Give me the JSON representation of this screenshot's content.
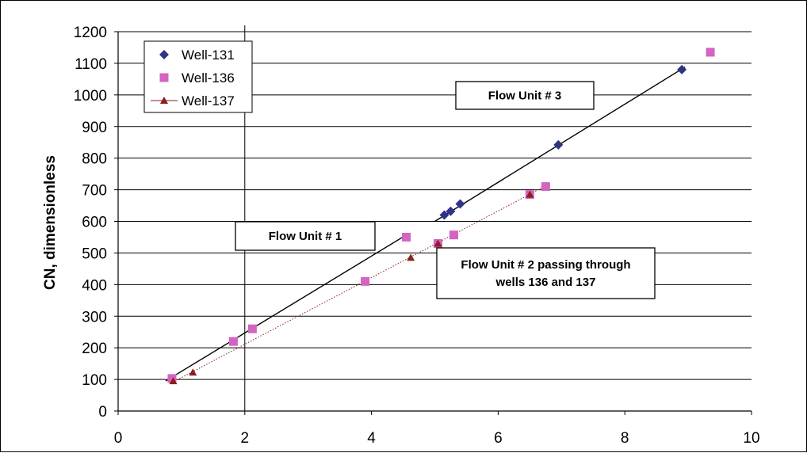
{
  "chart_data": {
    "type": "scatter",
    "title": "",
    "xlabel": "",
    "ylabel": "CN, dimensionless",
    "xlim": [
      0,
      10
    ],
    "ylim": [
      0,
      1200
    ],
    "xticks": [
      0,
      2,
      4,
      6,
      8,
      10
    ],
    "yticks": [
      0,
      100,
      200,
      300,
      400,
      500,
      600,
      700,
      800,
      900,
      1000,
      1100,
      1200
    ],
    "grid": "horizontal",
    "legend_position": "top-left",
    "series": [
      {
        "name": "Well-131",
        "marker": "diamond",
        "color": "#2e3586",
        "points": [
          [
            5.15,
            620
          ],
          [
            5.25,
            632
          ],
          [
            5.4,
            655
          ],
          [
            6.95,
            842
          ],
          [
            8.9,
            1080
          ]
        ]
      },
      {
        "name": "Well-136",
        "marker": "square",
        "color": "#d364c0",
        "points": [
          [
            0.85,
            103
          ],
          [
            1.82,
            220
          ],
          [
            2.12,
            260
          ],
          [
            3.9,
            410
          ],
          [
            4.55,
            550
          ],
          [
            5.05,
            530
          ],
          [
            5.3,
            557
          ],
          [
            6.5,
            685
          ],
          [
            6.75,
            710
          ],
          [
            9.35,
            1135
          ]
        ]
      },
      {
        "name": "Well-137",
        "marker": "triangle",
        "color": "#8b1f1f",
        "points": [
          [
            0.87,
            95
          ],
          [
            1.18,
            122
          ],
          [
            4.62,
            485
          ],
          [
            5.05,
            530
          ],
          [
            6.5,
            685
          ]
        ]
      }
    ],
    "trendlines": [
      {
        "from": [
          0.75,
          95
        ],
        "to": [
          4.55,
          557
        ],
        "style": "solid",
        "color": "#000000"
      },
      {
        "from": [
          5.0,
          600
        ],
        "to": [
          8.95,
          1088
        ],
        "style": "solid",
        "color": "#000000"
      },
      {
        "from": [
          0.85,
          90
        ],
        "to": [
          6.75,
          712
        ],
        "style": "dotted",
        "color": "#8b1f1f"
      }
    ],
    "annotations": [
      {
        "text": "Flow Unit # 1",
        "lines": [
          "Flow Unit # 1"
        ]
      },
      {
        "text": "Flow Unit # 2 passing through wells 136 and 137",
        "lines": [
          "Flow Unit # 2 passing through",
          "wells 136 and 137"
        ]
      },
      {
        "text": "Flow Unit # 3",
        "lines": [
          "Flow Unit # 3"
        ]
      }
    ]
  }
}
